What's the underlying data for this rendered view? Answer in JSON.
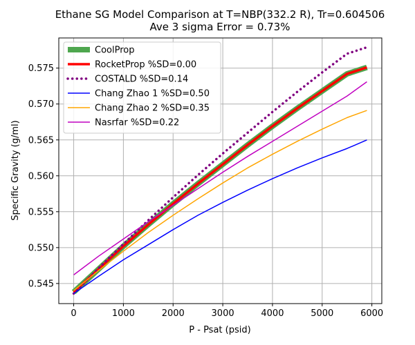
{
  "chart_data": {
    "type": "line",
    "title": "Ethane SG Model Comparison at T=NBP(332.2 R), Tr=0.604506",
    "subtitle": "Ave 3 sigma Error = 0.73%",
    "xlabel": "P - Psat (psid)",
    "ylabel": "Specific Gravity (g/ml)",
    "xlim": [
      -300,
      6200
    ],
    "ylim": [
      0.5422,
      0.5792
    ],
    "x_ticks": [
      0,
      1000,
      2000,
      3000,
      4000,
      5000,
      6000
    ],
    "y_ticks": [
      0.545,
      0.55,
      0.555,
      0.56,
      0.565,
      0.57,
      0.575
    ],
    "y_tick_labels": [
      "0.545",
      "0.550",
      "0.555",
      "0.560",
      "0.565",
      "0.570",
      "0.575"
    ],
    "grid": true,
    "legend_position": "upper-left",
    "x": [
      0,
      500,
      1000,
      1500,
      2000,
      2500,
      3000,
      3500,
      4000,
      4500,
      5000,
      5500,
      5900
    ],
    "series": [
      {
        "name": "CoolProp",
        "color": "#4ea64e",
        "style": "solid",
        "width": "thick",
        "values": [
          0.5438,
          0.547,
          0.5502,
          0.5532,
          0.5561,
          0.5589,
          0.5616,
          0.5643,
          0.5669,
          0.5694,
          0.5718,
          0.5742,
          0.5751
        ]
      },
      {
        "name": "RocketProp %SD=0.00",
        "color": "#ff0000",
        "style": "solid",
        "width": "medium",
        "values": [
          0.5438,
          0.547,
          0.5502,
          0.5532,
          0.5561,
          0.5589,
          0.5616,
          0.5643,
          0.5669,
          0.5694,
          0.5718,
          0.5742,
          0.5751
        ]
      },
      {
        "name": "COSTALD %SD=0.14",
        "color": "#800080",
        "style": "dotted",
        "width": "medium",
        "values": [
          0.5436,
          0.5471,
          0.5505,
          0.5538,
          0.557,
          0.5601,
          0.5631,
          0.566,
          0.5689,
          0.5717,
          0.5744,
          0.577,
          0.5779
        ]
      },
      {
        "name": "Chang Zhao 1 %SD=0.50",
        "color": "#0000ff",
        "style": "solid",
        "width": "thin",
        "values": [
          0.5436,
          0.546,
          0.5483,
          0.5504,
          0.5525,
          0.5545,
          0.5563,
          0.558,
          0.5596,
          0.5611,
          0.5625,
          0.5638,
          0.565
        ]
      },
      {
        "name": "Chang Zhao 2 %SD=0.35",
        "color": "#ffa500",
        "style": "solid",
        "width": "thin",
        "values": [
          0.544,
          0.5468,
          0.5495,
          0.5521,
          0.5545,
          0.5568,
          0.559,
          0.5611,
          0.563,
          0.5648,
          0.5665,
          0.5681,
          0.5691
        ]
      },
      {
        "name": "Nasrfar %SD=0.22",
        "color": "#c000c0",
        "style": "solid",
        "width": "thin",
        "values": [
          0.5462,
          0.5488,
          0.5512,
          0.5536,
          0.5559,
          0.5582,
          0.5605,
          0.5627,
          0.5648,
          0.5669,
          0.569,
          0.5711,
          0.5731
        ]
      }
    ]
  }
}
